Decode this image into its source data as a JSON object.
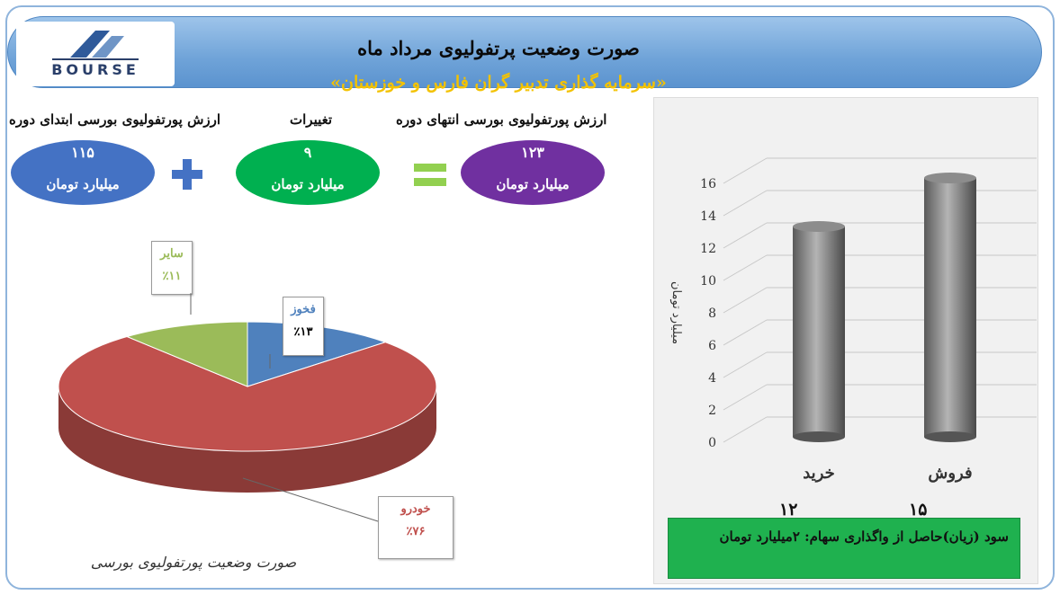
{
  "header": {
    "title": "صورت وضعیت پرتفولیوی مرداد ماه",
    "subtitle": "«سرمایه گذاری تدبیر گران فارس و خوزستان»",
    "logo_text": "BOURSE"
  },
  "summary": {
    "start": {
      "label": "ارزش پورتفولیوی بورسی ابتدای دوره",
      "value": "۱۱۵",
      "unit": "میلیارد تومان",
      "color": "#4472c4"
    },
    "change": {
      "label": "تغییرات",
      "value": "۹",
      "unit": "میلیارد تومان",
      "color": "#00b050"
    },
    "end": {
      "label": "ارزش پورتفولیوی بورسی انتهای دوره",
      "value": "۱۲۳",
      "unit": "میلیارد تومان",
      "color": "#7030a0"
    }
  },
  "pie": {
    "caption": "صورت وضعیت پورتفولیوی بورسی",
    "slices": [
      {
        "name": "خودرو",
        "percent_label": "٪۷۶",
        "value": 76,
        "color": "#c0504d"
      },
      {
        "name": "فخوز",
        "percent_label": "٪۱۳",
        "value": 13,
        "color": "#4f81bd"
      },
      {
        "name": "سایر",
        "percent_label": "٪۱۱",
        "value": 11,
        "color": "#9bbb59"
      }
    ]
  },
  "chart_data": {
    "type": "bar",
    "categories": [
      "خرید",
      "فروش"
    ],
    "values": [
      12,
      15
    ],
    "value_labels": [
      "۱۲",
      "۱۵"
    ],
    "ylabel": "میلیارد تومان",
    "ylim": [
      0,
      16
    ],
    "yticks": [
      0,
      2,
      4,
      6,
      8,
      10,
      12,
      14,
      16
    ],
    "grid": true,
    "bar_color": "#7f7f7f"
  },
  "profit_note": "سود (زیان)حاصل از واگذاری سهام: ۲میلیارد تومان"
}
